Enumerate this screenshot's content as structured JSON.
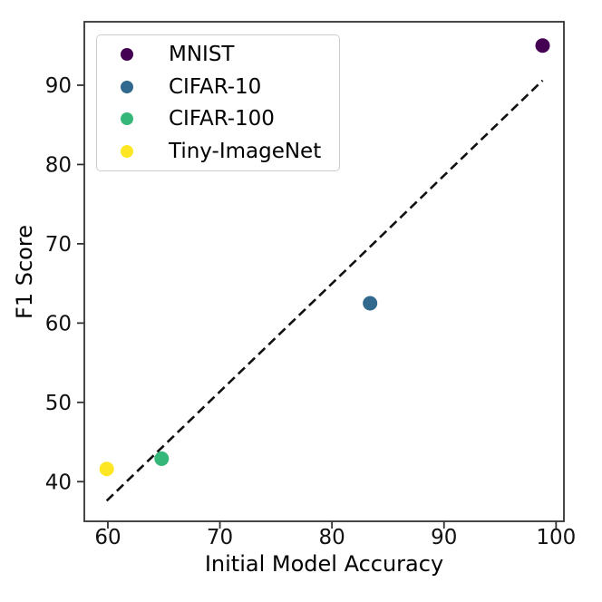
{
  "chart_data": {
    "type": "scatter",
    "title": "",
    "xlabel": "Initial Model Accuracy",
    "ylabel": "F1 Score",
    "xlim": [
      57.9,
      100.7
    ],
    "ylim": [
      35.0,
      98.0
    ],
    "x_ticks": [
      60,
      70,
      80,
      90,
      100
    ],
    "y_ticks": [
      40,
      50,
      60,
      70,
      80,
      90
    ],
    "grid": false,
    "legend_position": "upper left",
    "series": [
      {
        "name": "MNIST",
        "color": "#440154",
        "points": [
          [
            98.8,
            95.0
          ]
        ]
      },
      {
        "name": "CIFAR-10",
        "color": "#31688e",
        "points": [
          [
            83.4,
            62.5
          ]
        ]
      },
      {
        "name": "CIFAR-100",
        "color": "#35b779",
        "points": [
          [
            64.8,
            42.9
          ]
        ]
      },
      {
        "name": "Tiny-ImageNet",
        "color": "#fde725",
        "points": [
          [
            59.9,
            41.6
          ]
        ]
      }
    ],
    "fit_line": {
      "style": "dashed",
      "color": "#111111",
      "from": [
        59.9,
        37.6
      ],
      "to": [
        98.8,
        90.6
      ]
    },
    "axis_color": "#333333",
    "tick_label_color": "#111111"
  }
}
